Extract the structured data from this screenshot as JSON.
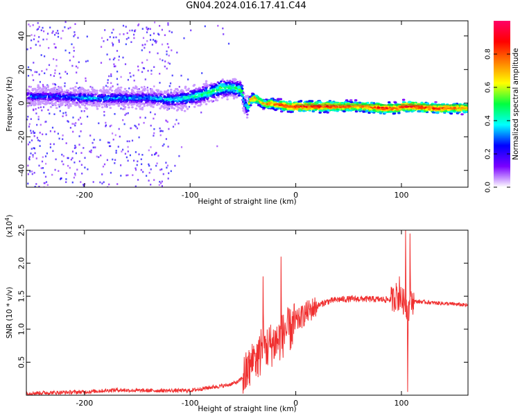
{
  "title": "GN04.2024.016.17.41.C44",
  "chart_data": [
    {
      "type": "heatmap",
      "id": "spectrogram",
      "xlabel": "Height of straight line (km)",
      "ylabel": "Frequency (Hz)",
      "xlim": [
        -255,
        163
      ],
      "ylim": [
        -50,
        49
      ],
      "x_ticks": [
        -200,
        -100,
        0,
        100
      ],
      "y_ticks": [
        -40,
        -20,
        0,
        20,
        40
      ],
      "colorbar": {
        "label": "Normalized spectral amplitude",
        "range": [
          0.0,
          1.0
        ],
        "ticks": [
          0.0,
          0.2,
          0.4,
          0.6,
          0.8
        ],
        "tick_labels": [
          "0.0",
          "0.2",
          "0.4",
          "0.6",
          "0.8"
        ],
        "colors": [
          "#ffffff",
          "#7a00ff",
          "#0000ff",
          "#00ffff",
          "#00ff40",
          "#ffff00",
          "#ff8000",
          "#ff0000",
          "#ff0066"
        ]
      },
      "ridge": {
        "x": [
          -255,
          -230,
          -200,
          -170,
          -140,
          -120,
          -105,
          -90,
          -80,
          -72,
          -65,
          -58,
          -52,
          -50,
          -47,
          -44,
          -40,
          -35,
          -30,
          -25,
          -20,
          -15,
          -10,
          0,
          20,
          40,
          60,
          80,
          95,
          100,
          110,
          130,
          163
        ],
        "y": [
          4,
          4,
          3,
          3,
          3,
          2,
          3,
          5,
          7,
          9,
          9,
          9,
          7,
          0,
          -3,
          2,
          3,
          1,
          -1,
          0,
          -1,
          -1,
          -2,
          -2,
          -2,
          -2,
          -2,
          -3,
          -3,
          -2,
          -2,
          -3,
          -3
        ],
        "amplitude": [
          0.3,
          0.3,
          0.35,
          0.35,
          0.35,
          0.4,
          0.45,
          0.5,
          0.5,
          0.55,
          0.5,
          0.5,
          0.55,
          0.4,
          0.45,
          0.75,
          0.8,
          0.7,
          0.75,
          0.8,
          0.8,
          0.85,
          0.85,
          0.9,
          0.9,
          0.85,
          0.8,
          0.9,
          0.85,
          0.9,
          0.9,
          0.85,
          0.8
        ]
      },
      "reference_line_y": -1
    },
    {
      "type": "line",
      "id": "snr",
      "xlabel": "Height of straight line (km)",
      "ylabel": "SNR (10 * v/v)",
      "y_multiplier_label": "(x10",
      "y_multiplier_exp": "4",
      "y_multiplier_close": ")",
      "xlim": [
        -255,
        163
      ],
      "ylim": [
        0,
        2.5
      ],
      "x_ticks": [
        -200,
        -100,
        0,
        100
      ],
      "y_ticks": [
        0.5,
        1.0,
        1.5,
        2.0,
        2.5
      ],
      "y_tick_labels": [
        "0.5",
        "1.0",
        "1.5",
        "2.0",
        "2.5"
      ],
      "color": "#f03030",
      "envelope": {
        "x": [
          -255,
          -200,
          -170,
          -150,
          -120,
          -100,
          -80,
          -65,
          -55,
          -48,
          -42,
          -38,
          -34,
          -30,
          -25,
          -20,
          -15,
          -10,
          -5,
          0,
          10,
          20,
          30,
          40,
          60,
          80,
          90,
          95,
          100,
          103,
          106,
          108,
          110,
          115,
          130,
          150,
          163
        ],
        "y": [
          0.03,
          0.05,
          0.08,
          0.07,
          0.07,
          0.07,
          0.12,
          0.15,
          0.2,
          0.3,
          0.45,
          0.55,
          0.6,
          0.7,
          0.75,
          0.8,
          0.85,
          0.95,
          1.0,
          1.1,
          1.25,
          1.35,
          1.42,
          1.45,
          1.46,
          1.45,
          1.45,
          1.47,
          1.45,
          1.4,
          1.3,
          1.35,
          1.42,
          1.42,
          1.4,
          1.38,
          1.36
        ]
      },
      "spikes": [
        {
          "x": -45,
          "y": 0.6
        },
        {
          "x": -40,
          "y": 0.75
        },
        {
          "x": -33,
          "y": 1.0
        },
        {
          "x": -31,
          "y": 1.8
        },
        {
          "x": -29,
          "y": 0.9
        },
        {
          "x": -14,
          "y": 2.1
        },
        {
          "x": -10,
          "y": 1.1
        },
        {
          "x": -5,
          "y": 1.3
        },
        {
          "x": 95,
          "y": 1.7
        },
        {
          "x": 98,
          "y": 1.8
        },
        {
          "x": 104,
          "y": 2.5
        },
        {
          "x": 106,
          "y": 0.05
        },
        {
          "x": 108,
          "y": 2.45
        }
      ]
    }
  ]
}
